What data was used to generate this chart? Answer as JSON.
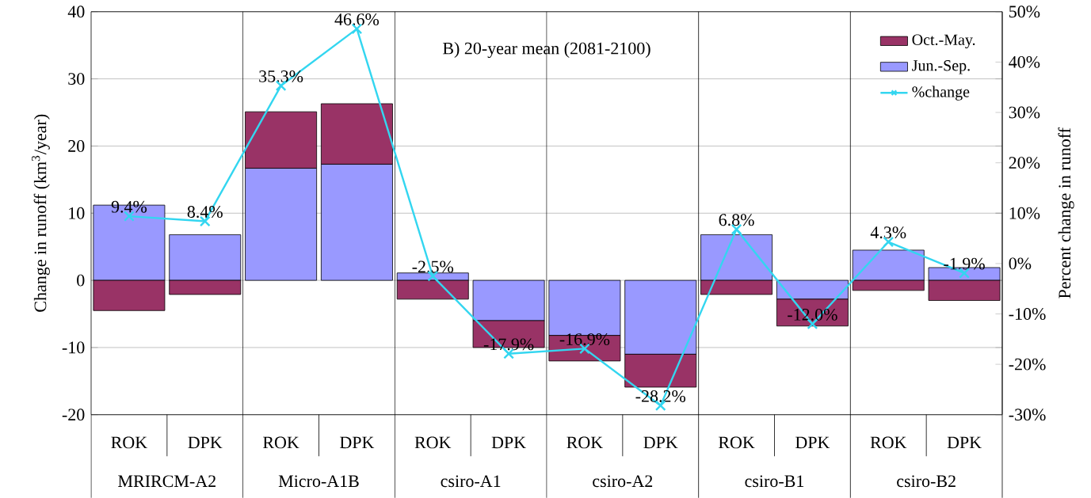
{
  "chart_data": {
    "type": "bar",
    "title": "B) 20-year mean (2081-2100)",
    "ylabel": "Change in runoff (km$^{3}$/year)",
    "y2label": "Percent change in runoff",
    "categories": [
      "ROK",
      "DPK",
      "ROK",
      "DPK",
      "ROK",
      "DPK",
      "ROK",
      "DPK",
      "ROK",
      "DPK",
      "ROK",
      "DPK"
    ],
    "annotations": [
      "MRIRCM-A2",
      "Micro-A1B",
      "csiro-A1",
      "csiro-A2",
      "csiro-B1",
      "csiro-B2"
    ],
    "stacked": true,
    "series": [
      {
        "name": "Jun.-Sep.",
        "color": "#9999ff",
        "values": [
          11.2,
          6.8,
          16.7,
          17.3,
          1.1,
          -6.0,
          -8.2,
          -11.0,
          6.8,
          -2.8,
          4.5,
          1.9
        ]
      },
      {
        "name": "Oct.-May.",
        "color": "#993366",
        "values": [
          -4.5,
          -2.1,
          8.4,
          9.0,
          -2.8,
          -4.0,
          -3.8,
          -4.9,
          -2.1,
          -4.0,
          -1.5,
          -3.0
        ]
      },
      {
        "name": "%change",
        "type": "line",
        "axis": "y2",
        "color": "#33d6f0",
        "marker": "cross",
        "line_style": "solid",
        "values": [
          9.4,
          8.4,
          35.3,
          46.6,
          -2.5,
          -17.9,
          -16.9,
          -28.2,
          6.8,
          -12.0,
          4.3,
          -1.9
        ],
        "value_labels": [
          "9.4%",
          "8.4%",
          "35.3%",
          "46.6%",
          "-2.5%",
          "-17.9%",
          "-16.9%",
          "-28.2%",
          "6.8%",
          "-12.0%",
          "4.3%",
          "-1.9%"
        ]
      }
    ],
    "ylim": [
      -20,
      40
    ],
    "yticks": [
      -20,
      -10,
      0,
      10,
      20,
      30,
      40
    ],
    "y2lim": [
      -30,
      50
    ],
    "y2ticks": [
      {
        "value": -30,
        "label": "-30%"
      },
      {
        "value": -20,
        "label": "-20%"
      },
      {
        "value": -10,
        "label": "-10%"
      },
      {
        "value": 0,
        "label": "0%"
      },
      {
        "value": 10,
        "label": "10%"
      },
      {
        "value": 20,
        "label": "20%"
      },
      {
        "value": 30,
        "label": "30%"
      },
      {
        "value": 40,
        "label": "40%"
      },
      {
        "value": 50,
        "label": "50%"
      }
    ],
    "grid": "y",
    "legend": "top right"
  }
}
